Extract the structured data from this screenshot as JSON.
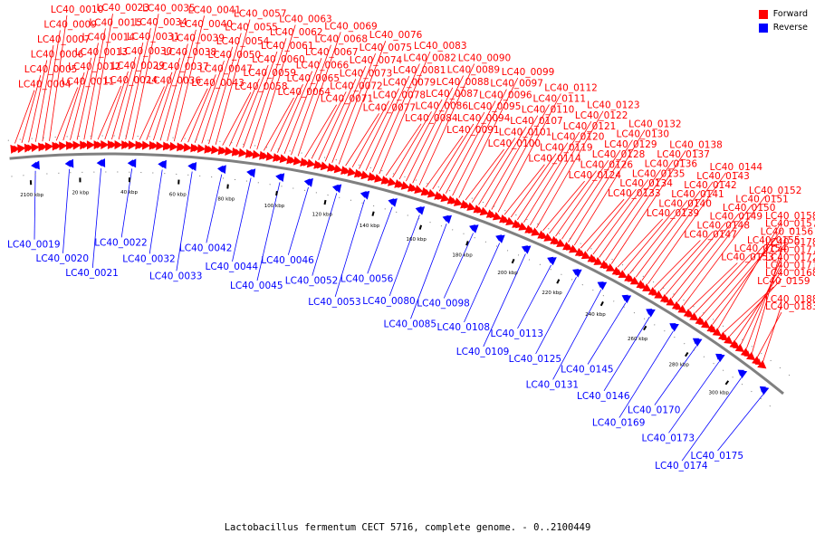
{
  "caption": "Lactobacillus fermentum CECT 5716, complete genome. - 0..2100449",
  "legend": [
    {
      "label": "Forward",
      "color": "#ff0000"
    },
    {
      "label": "Reverse",
      "color": "#0000ff"
    }
  ],
  "colors": {
    "forward": "#ff0000",
    "reverse": "#0000ff",
    "backbone": "#808080"
  },
  "ticks": [
    "2100 kbp",
    "20 kbp",
    "40 kbp",
    "60 kbp",
    "80 kbp",
    "100 kbp",
    "120 kbp",
    "140 kbp",
    "160 kbp",
    "180 kbp",
    "200 kbp",
    "220 kbp",
    "240 kbp",
    "260 kbp",
    "280 kbp",
    "300 kbp"
  ],
  "forward_genes": [
    "LC40_0004",
    "LC40_0005",
    "LC40_0006",
    "LC40_0007",
    "LC40_0009",
    "LC40_0010",
    "LC40_0011",
    "LC40_0012",
    "LC40_0013",
    "LC40_0014",
    "LC40_0015",
    "LC40_0023",
    "LC40_0024",
    "LC40_0029",
    "LC40_0030",
    "LC40_0031",
    "LC40_0034",
    "LC40_0035",
    "LC40_0036",
    "LC40_0037",
    "LC40_0038",
    "LC40_0039",
    "LC40_0040",
    "LC40_0041",
    "LC40_0043",
    "LC40_0047",
    "LC40_0050",
    "LC40_0054",
    "LC40_0055",
    "LC40_0057",
    "LC40_0058",
    "LC40_0059",
    "LC40_0060",
    "LC40_0061",
    "LC40_0062",
    "LC40_0063",
    "LC40_0064",
    "LC40_0065",
    "LC40_0066",
    "LC40_0067",
    "LC40_0068",
    "LC40_0069",
    "LC40_0071",
    "LC40_0072",
    "LC40_0073",
    "LC40_0074",
    "LC40_0075",
    "LC40_0076",
    "LC40_0077",
    "LC40_0078",
    "LC40_0079",
    "LC40_0081",
    "LC40_0082",
    "LC40_0083",
    "LC40_0084",
    "LC40_0086",
    "LC40_0087",
    "LC40_0088",
    "LC40_0089",
    "LC40_0090",
    "LC40_0091",
    "LC40_0094",
    "LC40_0095",
    "LC40_0096",
    "LC40_0097",
    "LC40_0099",
    "LC40_0100",
    "LC40_0101",
    "LC40_0107",
    "LC40_0110",
    "LC40_0111",
    "LC40_0112",
    "LC40_0114",
    "LC40_0119",
    "LC40_0120",
    "LC40_0121",
    "LC40_0122",
    "LC40_0123",
    "LC40_0124",
    "LC40_0126",
    "LC40_0128",
    "LC40_0129",
    "LC40_0130",
    "LC40_0132",
    "LC40_0133",
    "LC40_0134",
    "LC40_0135",
    "LC40_0136",
    "LC40_0137",
    "LC40_0138",
    "LC40_0139",
    "LC40_0140",
    "LC40_0141",
    "LC40_0142",
    "LC40_0143",
    "LC40_0144",
    "LC40_0147",
    "LC40_0148",
    "LC40_0149",
    "LC40_0150",
    "LC40_0151",
    "LC40_0152",
    "LC40_0153",
    "LC40_0154",
    "LC40_0155",
    "LC40_0156",
    "LC40_0157",
    "LC40_0158",
    "LC40_0159",
    "LC40_0168",
    "LC40_0171",
    "LC40_0172",
    "LC40_0177",
    "LC40_0178",
    "LC40_0183",
    "LC40_0188"
  ],
  "reverse_genes": [
    "LC40_0019",
    "LC40_0020",
    "LC40_0021",
    "LC40_0022",
    "LC40_0032",
    "LC40_0033",
    "LC40_0042",
    "LC40_0044",
    "LC40_0045",
    "LC40_0046",
    "LC40_0052",
    "LC40_0053",
    "LC40_0056",
    "LC40_0080",
    "LC40_0085",
    "LC40_0098",
    "LC40_0108",
    "LC40_0109",
    "LC40_0113",
    "LC40_0125",
    "LC40_0131",
    "LC40_0145",
    "LC40_0146",
    "LC40_0169",
    "LC40_0170",
    "LC40_0173",
    "LC40_0174",
    "LC40_0175"
  ]
}
